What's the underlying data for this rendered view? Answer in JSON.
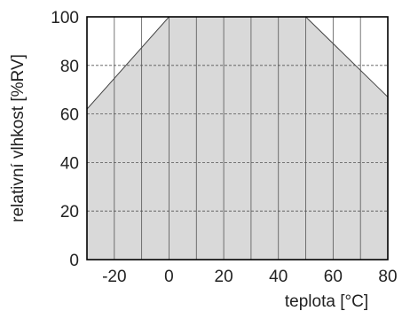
{
  "chart_data": {
    "type": "area",
    "xlabel": "teplota [°C]",
    "ylabel": "relativní vlhkost [%RV]",
    "xlim": [
      -30,
      80
    ],
    "ylim": [
      0,
      100
    ],
    "x_ticks": [
      -20,
      0,
      20,
      40,
      60,
      80
    ],
    "y_ticks": [
      0,
      20,
      40,
      60,
      80,
      100
    ],
    "x_tick_labels": [
      "-20",
      "0",
      "20",
      "40",
      "60",
      "80"
    ],
    "y_tick_labels": [
      "0",
      "20",
      "40",
      "60",
      "80",
      "100"
    ],
    "grid": true,
    "x_grid_step": 10,
    "fill_color": "#d9d9d9",
    "series": [
      {
        "x": [
          -30,
          0,
          50,
          80
        ],
        "y": [
          62,
          100,
          100,
          67
        ]
      }
    ]
  }
}
